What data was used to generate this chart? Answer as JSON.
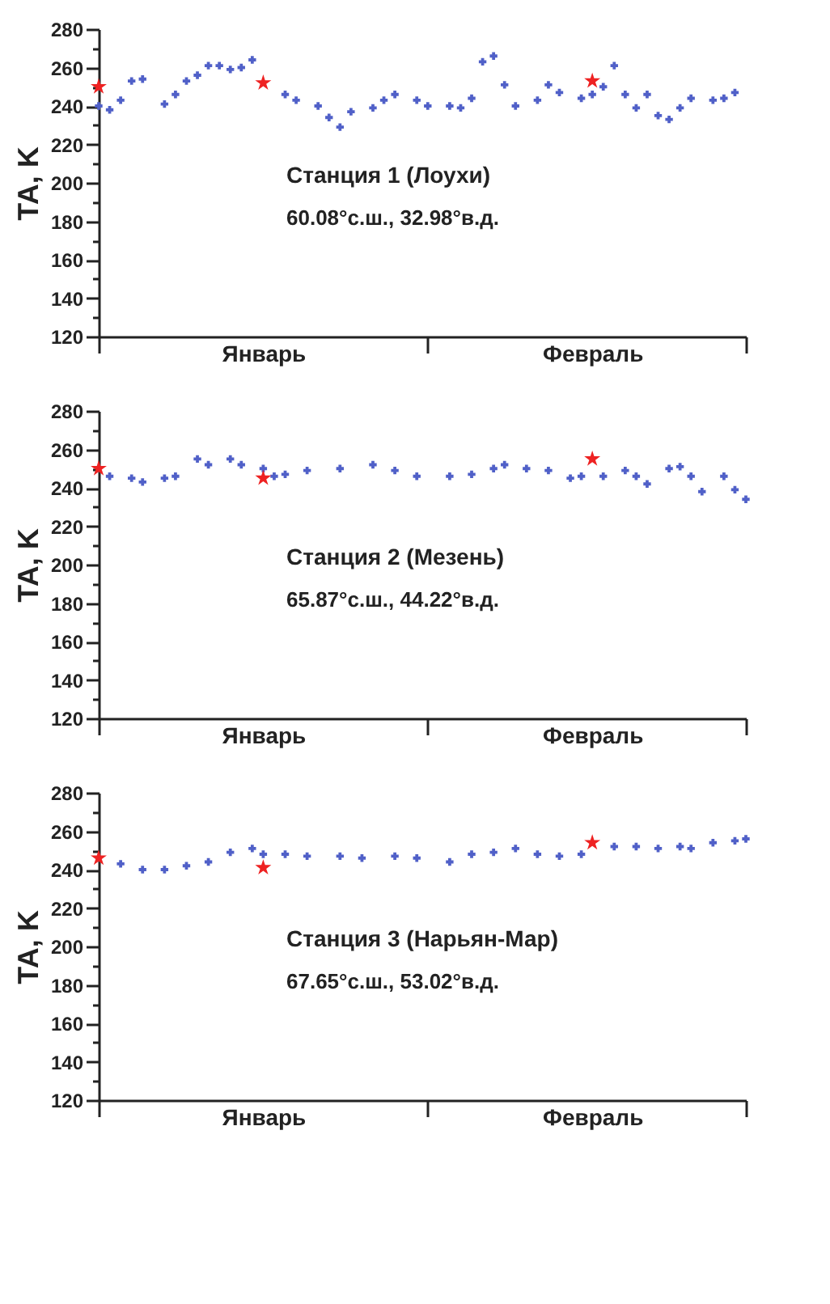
{
  "chart_data": [
    {
      "type": "scatter",
      "ylabel": "TA, K",
      "ylim": [
        120,
        280
      ],
      "categories": [
        null,
        null,
        null,
        null,
        null,
        null,
        null,
        null,
        null,
        null,
        null,
        null,
        null,
        null,
        null,
        "Январь",
        null,
        null,
        null,
        null,
        null,
        null,
        null,
        null,
        null,
        null,
        null,
        null,
        null,
        null,
        null,
        null,
        null,
        null,
        null,
        null,
        null,
        null,
        null,
        null,
        null,
        null,
        null,
        null,
        null,
        "Февраль",
        null,
        null,
        null,
        null,
        null,
        null,
        null,
        null,
        null,
        null,
        null,
        null,
        null,
        null
      ],
      "yticks": [
        120,
        {
          "value": 130,
          "label": null
        },
        140,
        {
          "value": 150,
          "label": null
        },
        160,
        {
          "value": 170,
          "label": null
        },
        180,
        {
          "value": 190,
          "label": null
        },
        200,
        {
          "value": 210,
          "label": null
        },
        220,
        {
          "value": 230,
          "label": null
        },
        240,
        {
          "value": 250,
          "label": null
        },
        260,
        {
          "value": 270,
          "label": null
        },
        280
      ],
      "annotations": [
        "Станция 1 (Лоухи)",
        "60.08°с.ш., 32.98°в.д."
      ],
      "series": [
        {
          "color": "#5060c8",
          "marker": "cross",
          "values": [
            240,
            238,
            243,
            253,
            254,
            null,
            241,
            246,
            253,
            256,
            261,
            261,
            259,
            260,
            264,
            null,
            null,
            246,
            243,
            null,
            240,
            234,
            229,
            237,
            null,
            239,
            243,
            246,
            null,
            243,
            240,
            null,
            240,
            239,
            244,
            263,
            266,
            251,
            240,
            null,
            243,
            251,
            247,
            null,
            244,
            246,
            250,
            261,
            246,
            239,
            246,
            235,
            233,
            239,
            244,
            null,
            243,
            244,
            247,
            null
          ]
        },
        {
          "color": "#ee2222",
          "marker": "star",
          "values": [
            250,
            null,
            null,
            null,
            null,
            null,
            null,
            null,
            null,
            null,
            null,
            null,
            null,
            null,
            null,
            252,
            null,
            null,
            null,
            null,
            null,
            null,
            null,
            null,
            null,
            null,
            null,
            null,
            null,
            null,
            null,
            null,
            null,
            null,
            null,
            null,
            null,
            null,
            null,
            null,
            null,
            null,
            null,
            null,
            null,
            253,
            null,
            null,
            null,
            null,
            null,
            null,
            null,
            null,
            null,
            null,
            null,
            null,
            null,
            null
          ]
        }
      ]
    },
    {
      "type": "scatter",
      "ylabel": "TA, K",
      "ylim": [
        120,
        280
      ],
      "categories": [
        null,
        null,
        null,
        null,
        null,
        null,
        null,
        null,
        null,
        null,
        null,
        null,
        null,
        null,
        null,
        "Январь",
        null,
        null,
        null,
        null,
        null,
        null,
        null,
        null,
        null,
        null,
        null,
        null,
        null,
        null,
        null,
        null,
        null,
        null,
        null,
        null,
        null,
        null,
        null,
        null,
        null,
        null,
        null,
        null,
        null,
        "Февраль",
        null,
        null,
        null,
        null,
        null,
        null,
        null,
        null,
        null,
        null,
        null,
        null,
        null,
        null
      ],
      "yticks": [
        120,
        {
          "value": 130,
          "label": null
        },
        140,
        {
          "value": 150,
          "label": null
        },
        160,
        {
          "value": 170,
          "label": null
        },
        180,
        {
          "value": 190,
          "label": null
        },
        200,
        {
          "value": 210,
          "label": null
        },
        220,
        {
          "value": 230,
          "label": null
        },
        240,
        {
          "value": 250,
          "label": null
        },
        260,
        {
          "value": 270,
          "label": null
        },
        280
      ],
      "annotations": [
        "Станция 2 (Мезень)",
        "65.87°с.ш., 44.22°в.д."
      ],
      "series": [
        {
          "color": "#5060c8",
          "marker": "cross",
          "values": [
            null,
            246,
            null,
            245,
            243,
            null,
            245,
            246,
            null,
            255,
            252,
            null,
            255,
            252,
            null,
            250,
            246,
            247,
            null,
            249,
            null,
            null,
            250,
            null,
            null,
            252,
            null,
            249,
            null,
            246,
            null,
            null,
            246,
            null,
            247,
            null,
            250,
            252,
            null,
            250,
            null,
            249,
            null,
            245,
            246,
            null,
            246,
            null,
            249,
            246,
            242,
            null,
            250,
            251,
            246,
            238,
            null,
            246,
            239,
            234
          ]
        },
        {
          "color": "#ee2222",
          "marker": "star",
          "values": [
            250,
            null,
            null,
            null,
            null,
            null,
            null,
            null,
            null,
            null,
            null,
            null,
            null,
            null,
            null,
            245,
            null,
            null,
            null,
            null,
            null,
            null,
            null,
            null,
            null,
            null,
            null,
            null,
            null,
            null,
            null,
            null,
            null,
            null,
            null,
            null,
            null,
            null,
            null,
            null,
            null,
            null,
            null,
            null,
            null,
            255,
            null,
            null,
            null,
            null,
            null,
            null,
            null,
            null,
            null,
            null,
            null,
            null,
            null,
            null
          ]
        }
      ]
    },
    {
      "type": "scatter",
      "ylabel": "TA, K",
      "ylim": [
        120,
        280
      ],
      "categories": [
        null,
        null,
        null,
        null,
        null,
        null,
        null,
        null,
        null,
        null,
        null,
        null,
        null,
        null,
        null,
        "Январь",
        null,
        null,
        null,
        null,
        null,
        null,
        null,
        null,
        null,
        null,
        null,
        null,
        null,
        null,
        null,
        null,
        null,
        null,
        null,
        null,
        null,
        null,
        null,
        null,
        null,
        null,
        null,
        null,
        null,
        "Февраль",
        null,
        null,
        null,
        null,
        null,
        null,
        null,
        null,
        null,
        null,
        null,
        null,
        null,
        null
      ],
      "yticks": [
        120,
        {
          "value": 130,
          "label": null
        },
        140,
        {
          "value": 150,
          "label": null
        },
        160,
        {
          "value": 170,
          "label": null
        },
        180,
        {
          "value": 190,
          "label": null
        },
        200,
        {
          "value": 210,
          "label": null
        },
        220,
        {
          "value": 230,
          "label": null
        },
        240,
        {
          "value": 250,
          "label": null
        },
        260,
        {
          "value": 270,
          "label": null
        },
        280
      ],
      "annotations": [
        "Станция 3 (Нарьян-Мар)",
        "67.65°с.ш., 53.02°в.д."
      ],
      "series": [
        {
          "color": "#5060c8",
          "marker": "cross",
          "values": [
            null,
            null,
            243,
            null,
            240,
            null,
            240,
            null,
            242,
            null,
            244,
            null,
            249,
            null,
            251,
            248,
            null,
            248,
            null,
            247,
            null,
            null,
            247,
            null,
            246,
            null,
            null,
            247,
            null,
            246,
            null,
            null,
            244,
            null,
            248,
            null,
            249,
            null,
            251,
            null,
            248,
            null,
            247,
            null,
            248,
            null,
            null,
            252,
            null,
            252,
            null,
            251,
            null,
            252,
            251,
            null,
            254,
            null,
            255,
            256
          ]
        },
        {
          "color": "#ee2222",
          "marker": "star",
          "values": [
            246,
            null,
            null,
            null,
            null,
            null,
            null,
            null,
            null,
            null,
            null,
            null,
            null,
            null,
            null,
            241,
            null,
            null,
            null,
            null,
            null,
            null,
            null,
            null,
            null,
            null,
            null,
            null,
            null,
            null,
            null,
            null,
            null,
            null,
            null,
            null,
            null,
            null,
            null,
            null,
            null,
            null,
            null,
            null,
            null,
            254,
            null,
            null,
            null,
            null,
            null,
            null,
            null,
            null,
            null,
            null,
            null,
            null,
            null,
            null
          ]
        }
      ]
    }
  ]
}
